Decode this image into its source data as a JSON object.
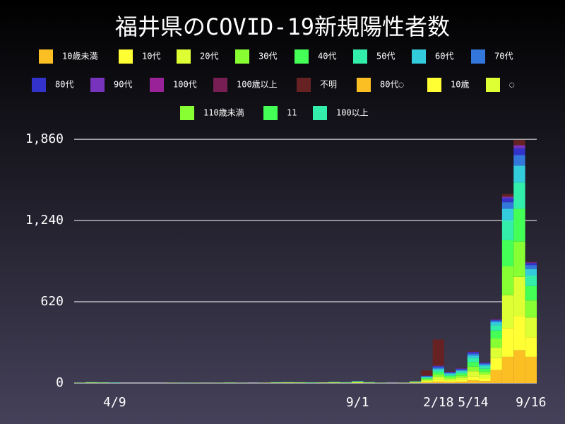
{
  "chart_data": {
    "type": "stacked-bar",
    "title": "福井県のCOVID-19新規陽性者数",
    "categories": [
      null,
      null,
      null,
      "4/9",
      null,
      null,
      null,
      null,
      null,
      null,
      null,
      null,
      null,
      null,
      null,
      null,
      null,
      null,
      null,
      null,
      null,
      null,
      null,
      null,
      "9/1",
      null,
      null,
      null,
      null,
      null,
      null,
      "2/18",
      null,
      null,
      "5/14",
      null,
      null,
      null,
      null,
      "9/16"
    ],
    "ylim": [
      0,
      1950
    ],
    "yticks": [
      0,
      620,
      {
        "value": 1240,
        "label": "1,240"
      },
      {
        "value": 1860,
        "label": "1,860"
      }
    ],
    "grid": true,
    "series": [
      {
        "name": "10歳未満",
        "color": "#fbbf24",
        "values": [
          0,
          0,
          0,
          0,
          0,
          0,
          0,
          0,
          0,
          0,
          0,
          0,
          0,
          0,
          0,
          0,
          0,
          0,
          0,
          0,
          0,
          0,
          0,
          0,
          1,
          0,
          0,
          0,
          0,
          2,
          5,
          10,
          8,
          10,
          20,
          15,
          100,
          200,
          250,
          200
        ]
      },
      {
        "name": "10代",
        "color": "#ffff33",
        "values": [
          0,
          1,
          0,
          0,
          0,
          0,
          0,
          0,
          1,
          0,
          0,
          0,
          0,
          0,
          1,
          0,
          0,
          1,
          1,
          1,
          0,
          1,
          1,
          0,
          2,
          1,
          0,
          0,
          0,
          2,
          6,
          12,
          8,
          12,
          30,
          20,
          90,
          220,
          260,
          150
        ]
      },
      {
        "name": "20代",
        "color": "#ddff33",
        "values": [
          1,
          2,
          2,
          1,
          0,
          0,
          0,
          0,
          0,
          1,
          1,
          0,
          1,
          2,
          1,
          0,
          1,
          2,
          3,
          2,
          1,
          2,
          3,
          2,
          4,
          2,
          1,
          0,
          1,
          3,
          10,
          25,
          15,
          20,
          40,
          30,
          80,
          250,
          300,
          150
        ]
      },
      {
        "name": "30代",
        "color": "#88ff33",
        "values": [
          1,
          1,
          1,
          0,
          0,
          0,
          0,
          0,
          1,
          0,
          0,
          1,
          0,
          1,
          0,
          0,
          1,
          1,
          1,
          1,
          1,
          1,
          2,
          1,
          2,
          1,
          0,
          0,
          1,
          2,
          8,
          18,
          12,
          16,
          35,
          22,
          70,
          220,
          270,
          130
        ]
      },
      {
        "name": "40代",
        "color": "#44ff55",
        "values": [
          1,
          1,
          1,
          1,
          0,
          0,
          0,
          0,
          0,
          0,
          1,
          0,
          1,
          0,
          0,
          0,
          0,
          1,
          1,
          1,
          1,
          0,
          1,
          1,
          3,
          1,
          1,
          0,
          0,
          2,
          8,
          18,
          12,
          15,
          35,
          22,
          60,
          200,
          250,
          110
        ]
      },
      {
        "name": "50代",
        "color": "#33eeaa",
        "values": [
          0,
          1,
          1,
          1,
          0,
          0,
          0,
          0,
          0,
          1,
          0,
          0,
          0,
          1,
          0,
          0,
          0,
          1,
          0,
          1,
          1,
          1,
          1,
          1,
          2,
          1,
          0,
          0,
          0,
          2,
          6,
          15,
          10,
          12,
          30,
          18,
          40,
          150,
          200,
          80
        ]
      },
      {
        "name": "60代",
        "color": "#33ccdd",
        "values": [
          0,
          1,
          0,
          1,
          0,
          0,
          0,
          0,
          0,
          0,
          0,
          0,
          0,
          0,
          1,
          0,
          0,
          0,
          1,
          0,
          1,
          0,
          1,
          1,
          1,
          1,
          0,
          0,
          0,
          1,
          5,
          12,
          8,
          10,
          20,
          12,
          25,
          90,
          130,
          50
        ]
      },
      {
        "name": "70代",
        "color": "#3377dd",
        "values": [
          0,
          0,
          1,
          1,
          0,
          0,
          0,
          0,
          0,
          0,
          0,
          0,
          0,
          1,
          0,
          0,
          0,
          1,
          0,
          0,
          0,
          0,
          0,
          1,
          1,
          0,
          0,
          0,
          0,
          1,
          4,
          10,
          6,
          8,
          15,
          10,
          12,
          50,
          80,
          30
        ]
      },
      {
        "name": "80代",
        "color": "#3333cc",
        "values": [
          0,
          0,
          0,
          0,
          0,
          0,
          0,
          0,
          0,
          0,
          0,
          0,
          0,
          0,
          0,
          0,
          0,
          0,
          0,
          0,
          0,
          0,
          0,
          0,
          1,
          0,
          0,
          0,
          0,
          0,
          3,
          8,
          5,
          6,
          10,
          6,
          6,
          30,
          50,
          15
        ]
      },
      {
        "name": "90代",
        "color": "#7733bb",
        "values": [
          0,
          0,
          0,
          0,
          0,
          0,
          0,
          0,
          0,
          0,
          0,
          0,
          0,
          0,
          0,
          0,
          0,
          0,
          0,
          0,
          0,
          0,
          0,
          0,
          0,
          0,
          0,
          0,
          0,
          0,
          1,
          4,
          2,
          3,
          4,
          2,
          2,
          12,
          25,
          5
        ]
      },
      {
        "name": "100代",
        "color": "#992299",
        "values": [
          0,
          0,
          0,
          0,
          0,
          0,
          0,
          0,
          0,
          0,
          0,
          0,
          0,
          0,
          0,
          0,
          0,
          0,
          0,
          0,
          0,
          0,
          0,
          0,
          0,
          0,
          0,
          0,
          0,
          0,
          0,
          0,
          0,
          0,
          0,
          0,
          0,
          0,
          0,
          0
        ]
      },
      {
        "name": "100歳以上",
        "color": "#771f55",
        "values": [
          0,
          0,
          0,
          0,
          0,
          0,
          0,
          0,
          0,
          0,
          0,
          0,
          0,
          0,
          0,
          0,
          0,
          0,
          0,
          0,
          0,
          0,
          0,
          0,
          0,
          0,
          0,
          0,
          0,
          0,
          0,
          0,
          0,
          0,
          0,
          0,
          0,
          0,
          0,
          0
        ]
      },
      {
        "name": "不明",
        "color": "#662222",
        "values": [
          0,
          0,
          0,
          0,
          0,
          0,
          0,
          0,
          0,
          0,
          0,
          0,
          0,
          0,
          0,
          0,
          0,
          0,
          0,
          0,
          0,
          0,
          0,
          0,
          0,
          0,
          0,
          0,
          0,
          1,
          40,
          200,
          5,
          3,
          5,
          3,
          5,
          20,
          40,
          5
        ]
      },
      {
        "name": "80代◌",
        "color": "#fbbf24",
        "values": [
          0,
          0,
          0,
          0,
          0,
          0,
          0,
          0,
          0,
          0,
          0,
          0,
          0,
          0,
          0,
          0,
          0,
          0,
          0,
          0,
          0,
          0,
          0,
          0,
          0,
          0,
          0,
          0,
          0,
          0,
          0,
          0,
          0,
          0,
          0,
          0,
          0,
          0,
          0,
          0
        ]
      },
      {
        "name": "10歳",
        "color": "#ffff33",
        "values": [
          0,
          0,
          0,
          0,
          0,
          0,
          0,
          0,
          0,
          0,
          0,
          0,
          0,
          0,
          0,
          0,
          0,
          0,
          0,
          0,
          0,
          0,
          0,
          0,
          0,
          0,
          0,
          0,
          0,
          0,
          0,
          0,
          0,
          0,
          0,
          0,
          0,
          0,
          0,
          0
        ]
      },
      {
        "name": "◌",
        "color": "#ddff33",
        "values": [
          0,
          0,
          0,
          0,
          0,
          0,
          0,
          0,
          0,
          0,
          0,
          0,
          0,
          0,
          0,
          0,
          0,
          0,
          0,
          0,
          0,
          0,
          0,
          0,
          0,
          0,
          0,
          0,
          0,
          0,
          0,
          0,
          0,
          0,
          0,
          0,
          0,
          0,
          0,
          0
        ]
      },
      {
        "name": "110歳未満",
        "color": "#88ff33",
        "values": [
          0,
          0,
          0,
          0,
          0,
          0,
          0,
          0,
          0,
          0,
          0,
          0,
          0,
          0,
          0,
          0,
          0,
          0,
          0,
          0,
          0,
          0,
          0,
          0,
          0,
          0,
          0,
          0,
          0,
          0,
          0,
          0,
          0,
          0,
          0,
          0,
          0,
          0,
          0,
          0
        ]
      },
      {
        "name": "11",
        "color": "#44ff55",
        "values": [
          0,
          0,
          0,
          0,
          0,
          0,
          0,
          0,
          0,
          0,
          0,
          0,
          0,
          0,
          0,
          0,
          0,
          0,
          0,
          0,
          0,
          0,
          0,
          0,
          0,
          0,
          0,
          0,
          0,
          0,
          0,
          0,
          0,
          0,
          0,
          0,
          0,
          0,
          0,
          0
        ]
      },
      {
        "name": "100以上",
        "color": "#33eeaa",
        "values": [
          0,
          0,
          0,
          0,
          0,
          0,
          0,
          0,
          0,
          0,
          0,
          0,
          0,
          0,
          0,
          0,
          0,
          0,
          0,
          0,
          0,
          0,
          0,
          0,
          0,
          0,
          0,
          0,
          0,
          0,
          0,
          0,
          0,
          0,
          0,
          0,
          0,
          0,
          0,
          0
        ]
      }
    ]
  }
}
